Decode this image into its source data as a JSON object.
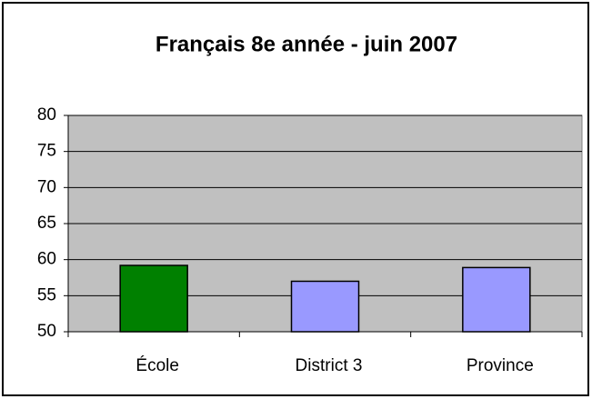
{
  "chart_data": {
    "type": "bar",
    "title": "Français 8e année - juin 2007",
    "categories": [
      "École",
      "District 3",
      "Province"
    ],
    "values": [
      59.2,
      57.0,
      58.9
    ],
    "colors": [
      "#008000",
      "#9999ff",
      "#9999ff"
    ],
    "ylim": [
      50,
      80
    ],
    "yticks": [
      50,
      55,
      60,
      65,
      70,
      75,
      80
    ],
    "grid": true
  }
}
